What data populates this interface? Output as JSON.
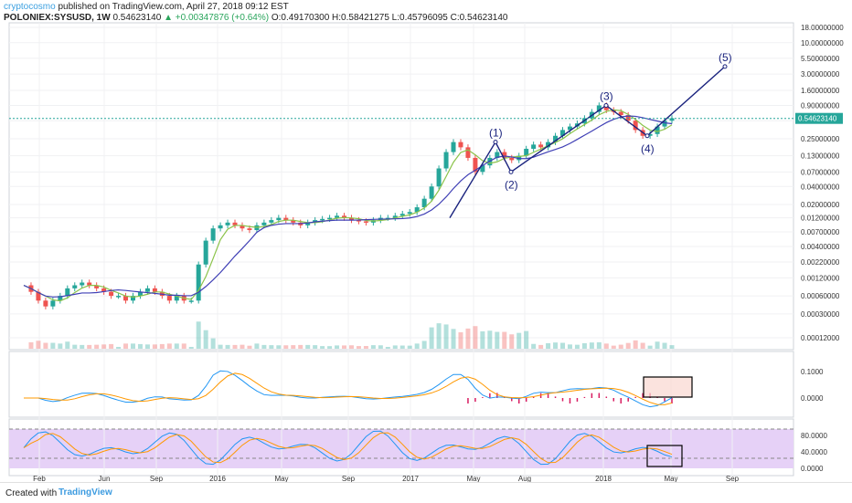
{
  "header": {
    "author": "cryptocosmo",
    "published": "published on TradingView.com, April 27, 2018 09:12 EST",
    "symbol": "POLONIEX:SYSUSD, 1W",
    "last": "0.54623140",
    "change_arrow": "▲",
    "change": "+0.00347876 (+0.64%)",
    "open": "O:0.49170300",
    "high": "H:0.58421275",
    "low": "L:0.45796095",
    "close": "C:0.54623140"
  },
  "footer": {
    "created_label": "Created with",
    "brand": "TradingView"
  },
  "colors": {
    "up": "#26a69a",
    "down": "#ef5350",
    "ma_fast": "#8bc34a",
    "ma_slow": "#3f3fb5",
    "wave": "#1a237e",
    "macd": "#2196f3",
    "signal": "#ff9800",
    "stoch_bg": "#e1c8f5",
    "box": "#f9d7d0",
    "last_price": "#26a69a"
  },
  "chart_data": {
    "type": "candlestick",
    "price_scale": "log",
    "x_ticks": [
      "Feb",
      "Jun",
      "Sep",
      "2016",
      "May",
      "Sep",
      "2017",
      "May",
      "Aug",
      "2018",
      "May",
      "Sep"
    ],
    "y_ticks": [
      "18.00000000",
      "10.00000000",
      "5.50000000",
      "3.00000000",
      "1.60000000",
      "0.90000000",
      "0.50000000",
      "0.25000000",
      "0.13000000",
      "0.07000000",
      "0.04000000",
      "0.02000000",
      "0.01200000",
      "0.00700000",
      "0.00400000",
      "0.00220000",
      "0.00120000",
      "0.00060000",
      "0.00030000",
      "0.00012000"
    ],
    "last_price_label": "0.54623140",
    "price_path": [
      0.0009,
      0.0007,
      0.0005,
      0.0004,
      0.0005,
      0.0006,
      0.0008,
      0.0009,
      0.001,
      0.0009,
      0.0008,
      0.0007,
      0.0006,
      0.0006,
      0.0005,
      0.0006,
      0.0007,
      0.0008,
      0.0007,
      0.0006,
      0.0005,
      0.0006,
      0.0005,
      0.0005,
      0.002,
      0.005,
      0.008,
      0.009,
      0.01,
      0.009,
      0.008,
      0.0075,
      0.009,
      0.01,
      0.011,
      0.012,
      0.011,
      0.01,
      0.009,
      0.01,
      0.011,
      0.0115,
      0.012,
      0.013,
      0.012,
      0.011,
      0.0105,
      0.01,
      0.011,
      0.012,
      0.012,
      0.013,
      0.014,
      0.015,
      0.018,
      0.025,
      0.04,
      0.08,
      0.15,
      0.22,
      0.18,
      0.12,
      0.07,
      0.09,
      0.12,
      0.15,
      0.12,
      0.11,
      0.13,
      0.17,
      0.2,
      0.18,
      0.22,
      0.28,
      0.35,
      0.4,
      0.45,
      0.55,
      0.7,
      0.9,
      0.75,
      0.7,
      0.62,
      0.5,
      0.35,
      0.28,
      0.3,
      0.4,
      0.5,
      0.55
    ],
    "elliott_waves": [
      {
        "label": "(1)",
        "value": 0.22
      },
      {
        "label": "(2)",
        "value": 0.07
      },
      {
        "label": "(3)",
        "value": 0.9
      },
      {
        "label": "(4)",
        "value": 0.28
      },
      {
        "label": "(5)",
        "value": 4.0
      }
    ],
    "macd_ticks": [
      "0.1000",
      "0.0000"
    ],
    "stoch_ticks": [
      "80.0000",
      "40.0000",
      "0.0000"
    ],
    "stoch_levels": [
      80,
      20
    ]
  }
}
